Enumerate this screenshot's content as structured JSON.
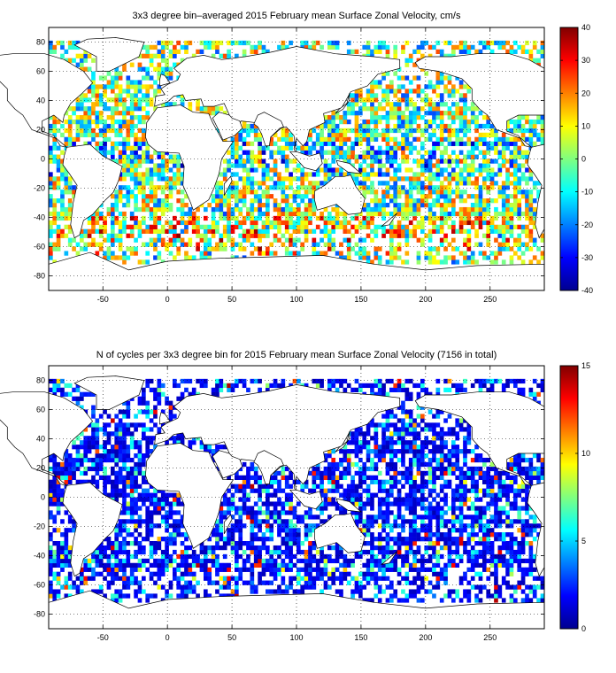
{
  "chart_data": [
    {
      "type": "heatmap",
      "title": "3x3 degree bin–averaged 2015 February mean Surface Zonal Velocity, cm/s",
      "x_ticks": [
        -50,
        0,
        50,
        100,
        150,
        200,
        250
      ],
      "y_ticks": [
        80,
        60,
        40,
        20,
        0,
        -20,
        -40,
        -60,
        -80
      ],
      "xlim": [
        -92,
        292
      ],
      "ylim": [
        -90,
        90
      ],
      "grid": true,
      "colorbar": {
        "ticks": [
          40,
          30,
          20,
          10,
          0,
          -10,
          -20,
          -30,
          -40
        ],
        "range": [
          -40,
          40
        ]
      },
      "colormap": "jet",
      "bin_size_deg": 3
    },
    {
      "type": "heatmap",
      "title": "N of cycles per 3x3 degree bin for 2015 February mean Surface Zonal Velocity (7156 in total)",
      "x_ticks": [
        -50,
        0,
        50,
        100,
        150,
        200,
        250
      ],
      "y_ticks": [
        80,
        60,
        40,
        20,
        0,
        -20,
        -40,
        -60,
        -80
      ],
      "xlim": [
        -92,
        292
      ],
      "ylim": [
        -90,
        90
      ],
      "grid": true,
      "colorbar": {
        "ticks": [
          15,
          10,
          5,
          0
        ],
        "range": [
          0,
          15
        ]
      },
      "colormap": "jet",
      "bin_size_deg": 3,
      "total_cycles": 7156
    }
  ],
  "colors": {
    "axis": "#000000",
    "grid": "#000000",
    "background": "#ffffff"
  }
}
